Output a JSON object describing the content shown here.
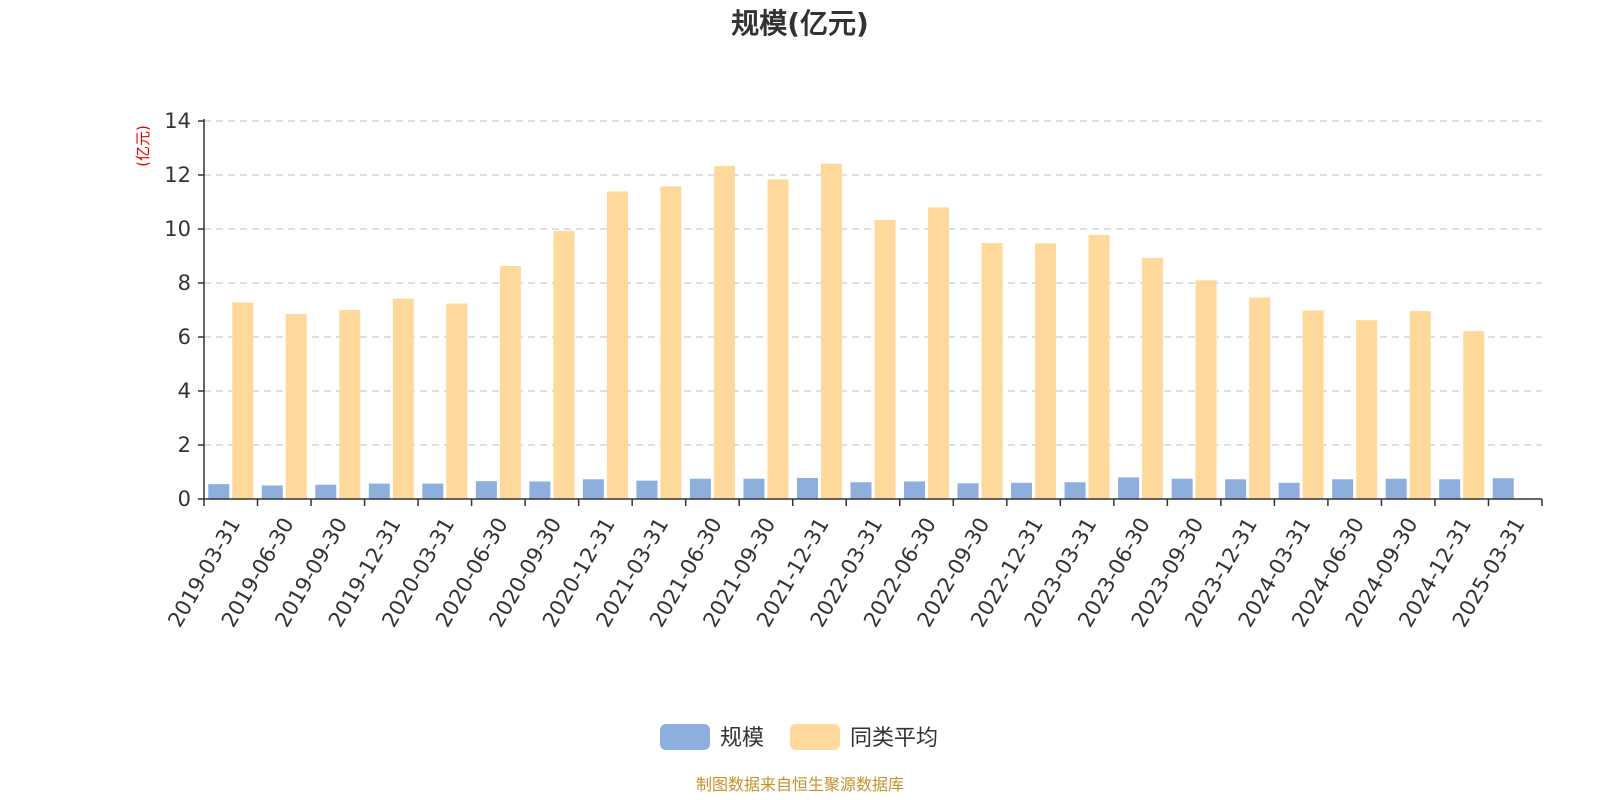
{
  "chart_data": {
    "type": "bar",
    "title": "规模(亿元)",
    "ylabel": "(亿元)",
    "ylim": [
      0,
      14
    ],
    "yticks": [
      "0",
      "2",
      "4",
      "6",
      "8",
      "10",
      "12",
      "14"
    ],
    "grid": true,
    "legend_position": "bottom",
    "categories": [
      "2019-03-31",
      "2019-06-30",
      "2019-09-30",
      "2019-12-31",
      "2020-03-31",
      "2020-06-30",
      "2020-09-30",
      "2020-12-31",
      "2021-03-31",
      "2021-06-30",
      "2021-09-30",
      "2021-12-31",
      "2022-03-31",
      "2022-06-30",
      "2022-09-30",
      "2022-12-31",
      "2023-03-31",
      "2023-06-30",
      "2023-09-30",
      "2023-12-31",
      "2024-03-31",
      "2024-06-30",
      "2024-09-30",
      "2024-12-31",
      "2025-03-31"
    ],
    "series": [
      {
        "name": "规模",
        "color": "#8eaedd",
        "values": [
          0.55,
          0.5,
          0.53,
          0.57,
          0.57,
          0.66,
          0.65,
          0.73,
          0.68,
          0.75,
          0.75,
          0.78,
          0.62,
          0.65,
          0.58,
          0.6,
          0.62,
          0.8,
          0.75,
          0.73,
          0.6,
          0.73,
          0.75,
          0.73,
          0.77
        ]
      },
      {
        "name": "同类平均",
        "color": "#fed99b",
        "values": [
          7.28,
          6.85,
          7.0,
          7.42,
          7.24,
          8.63,
          9.93,
          11.39,
          11.58,
          12.33,
          11.84,
          12.42,
          10.33,
          10.8,
          9.48,
          9.47,
          9.78,
          8.93,
          8.1,
          7.46,
          6.98,
          6.62,
          6.96,
          6.22,
          null
        ]
      }
    ],
    "colors": {
      "axis": "#333333",
      "grid": "#cccccc",
      "unit_label": "#e60000",
      "source_text": "#c8902a"
    }
  },
  "source_note": "制图数据来自恒生聚源数据库"
}
